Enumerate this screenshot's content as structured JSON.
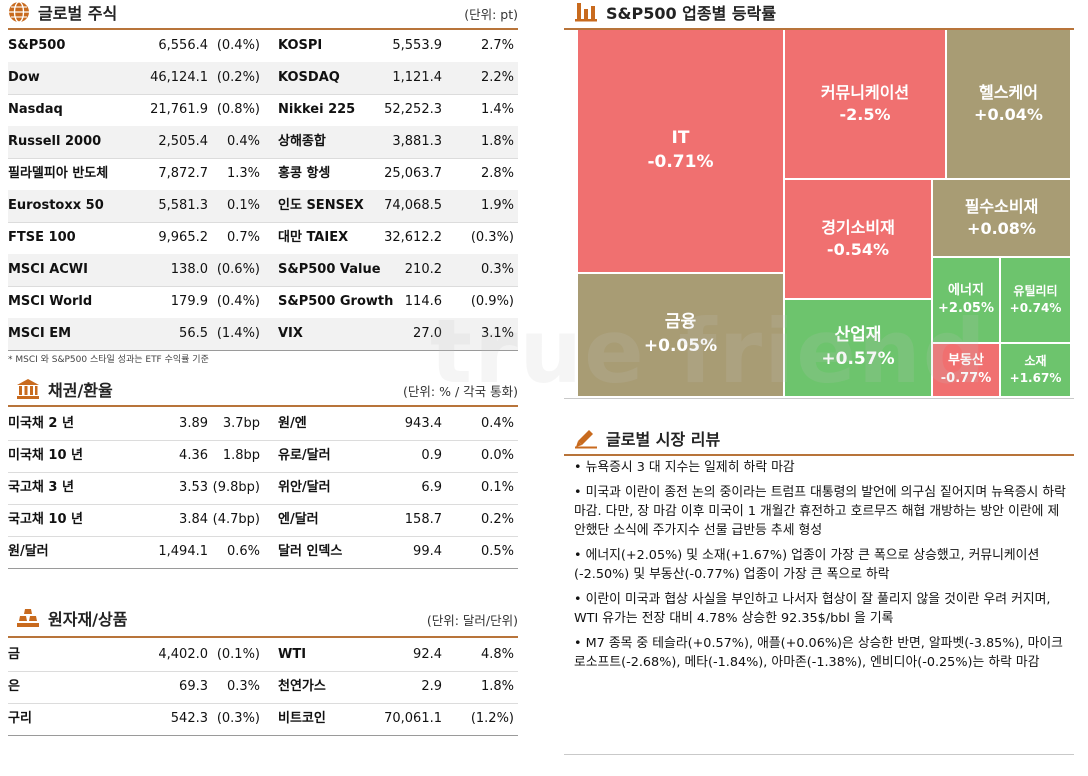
{
  "stocks": {
    "title": "글로벌 주식",
    "unit": "(단위: pt)",
    "footnote": "* MSCI 와 S&P500 스타일 성과는 ETF 수익률 기준",
    "rows": [
      {
        "n1": "S&P500",
        "v1": "6,556.4",
        "c1": "(0.4%)",
        "n2": "KOSPI",
        "v2": "5,553.9",
        "c2": "2.7%"
      },
      {
        "n1": "Dow",
        "v1": "46,124.1",
        "c1": "(0.2%)",
        "n2": "KOSDAQ",
        "v2": "1,121.4",
        "c2": "2.2%"
      },
      {
        "n1": "Nasdaq",
        "v1": "21,761.9",
        "c1": "(0.8%)",
        "n2": "Nikkei 225",
        "v2": "52,252.3",
        "c2": "1.4%"
      },
      {
        "n1": "Russell 2000",
        "v1": "2,505.4",
        "c1": "0.4%",
        "n2": "상해종합",
        "v2": "3,881.3",
        "c2": "1.8%"
      },
      {
        "n1": "필라델피아 반도체",
        "v1": "7,872.7",
        "c1": "1.3%",
        "n2": "홍콩 항셍",
        "v2": "25,063.7",
        "c2": "2.8%"
      },
      {
        "n1": "Eurostoxx 50",
        "v1": "5,581.3",
        "c1": "0.1%",
        "n2": "인도 SENSEX",
        "v2": "74,068.5",
        "c2": "1.9%"
      },
      {
        "n1": "FTSE 100",
        "v1": "9,965.2",
        "c1": "0.7%",
        "n2": "대만 TAIEX",
        "v2": "32,612.2",
        "c2": "(0.3%)"
      },
      {
        "n1": "MSCI ACWI",
        "v1": "138.0",
        "c1": "(0.6%)",
        "n2": "S&P500 Value",
        "v2": "210.2",
        "c2": "0.3%"
      },
      {
        "n1": "MSCI World",
        "v1": "179.9",
        "c1": "(0.4%)",
        "n2": "S&P500 Growth",
        "v2": "114.6",
        "c2": "(0.9%)"
      },
      {
        "n1": "MSCI EM",
        "v1": "56.5",
        "c1": "(1.4%)",
        "n2": "VIX",
        "v2": "27.0",
        "c2": "3.1%"
      }
    ]
  },
  "bonds": {
    "title": "채권/환율",
    "unit": "(단위: % / 각국 통화)",
    "rows": [
      {
        "n1": "미국채 2 년",
        "v1": "3.89",
        "c1": "3.7bp",
        "n2": "원/엔",
        "v2": "943.4",
        "c2": "0.4%"
      },
      {
        "n1": "미국채 10 년",
        "v1": "4.36",
        "c1": "1.8bp",
        "n2": "유로/달러",
        "v2": "0.9",
        "c2": "0.0%"
      },
      {
        "n1": "국고채 3 년",
        "v1": "3.53",
        "c1": "(9.8bp)",
        "n2": "위안/달러",
        "v2": "6.9",
        "c2": "0.1%"
      },
      {
        "n1": "국고채 10 년",
        "v1": "3.84",
        "c1": "(4.7bp)",
        "n2": "엔/달러",
        "v2": "158.7",
        "c2": "0.2%"
      },
      {
        "n1": "원/달러",
        "v1": "1,494.1",
        "c1": "0.6%",
        "n2": "달러 인덱스",
        "v2": "99.4",
        "c2": "0.5%"
      }
    ]
  },
  "commodities": {
    "title": "원자재/상품",
    "unit": "(단위: 달러/단위)",
    "rows": [
      {
        "n1": "금",
        "v1": "4,402.0",
        "c1": "(0.1%)",
        "n2": "WTI",
        "v2": "92.4",
        "c2": "4.8%"
      },
      {
        "n1": "은",
        "v1": "69.3",
        "c1": "0.3%",
        "n2": "천연가스",
        "v2": "2.9",
        "c2": "1.8%"
      },
      {
        "n1": "구리",
        "v1": "542.3",
        "c1": "(0.3%)",
        "n2": "비트코인",
        "v2": "70,061.1",
        "c2": "(1.2%)"
      }
    ]
  },
  "sectors": {
    "title": "S&P500 업종별 등락률",
    "watermark": "true friend",
    "tiles": [
      {
        "name": "IT",
        "value": "-0.71%",
        "color": "#f07070"
      },
      {
        "name": "커뮤니케이션",
        "value": "-2.5%",
        "color": "#f07070"
      },
      {
        "name": "헬스케어",
        "value": "+0.04%",
        "color": "#a89c74"
      },
      {
        "name": "경기소비재",
        "value": "-0.54%",
        "color": "#f07070"
      },
      {
        "name": "필수소비재",
        "value": "+0.08%",
        "color": "#a89c74"
      },
      {
        "name": "금융",
        "value": "+0.05%",
        "color": "#a89c74"
      },
      {
        "name": "산업재",
        "value": "+0.57%",
        "color": "#6dc46d"
      },
      {
        "name": "에너지",
        "value": "+2.05%",
        "color": "#6dc46d"
      },
      {
        "name": "유틸리티",
        "value": "+0.74%",
        "color": "#6dc46d"
      },
      {
        "name": "부동산",
        "value": "-0.77%",
        "color": "#f07070"
      },
      {
        "name": "소재",
        "value": "+1.67%",
        "color": "#6dc46d"
      }
    ]
  },
  "review": {
    "title": "글로벌 시장 리뷰",
    "items": [
      "뉴욕증시 3 대 지수는 일제히 하락 마감",
      "미국과 이란이 종전 논의 중이라는 트럼프 대통령의 발언에 의구심 짙어지며 뉴욕증시 하락 마감. 다만, 장 마감 이후 미국이 1 개월간 휴전하고 호르무즈 해협 개방하는 방안 이란에 제안했단 소식에 주가지수 선물 급반등 추세 형성",
      "에너지(+2.05%) 및 소재(+1.67%) 업종이 가장 큰 폭으로 상승했고, 커뮤니케이션(-2.50%) 및 부동산(-0.77%) 업종이 가장 큰 폭으로 하락",
      "이란이 미국과 협상 사실을 부인하고 나서자 협상이 잘 풀리지 않을 것이란 우려 커지며, WTI 유가는 전장 대비 4.78% 상승한 92.35$/bbl 을 기록",
      "M7 종목 중 테슬라(+0.57%), 애플(+0.06%)은 상승한 반면, 알파벳(-3.85%), 마이크로소프트(-2.68%), 메타(-1.84%), 아마존(-1.38%), 엔비디아(-0.25%)는 하락 마감"
    ]
  }
}
